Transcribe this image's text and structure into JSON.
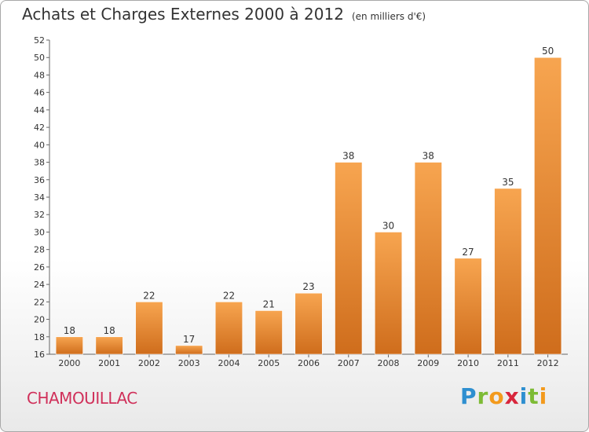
{
  "title": "Achats et Charges Externes 2000 à 2012",
  "unit": "(en milliers d'€)",
  "commune": "CHAMOUILLAC",
  "logo": {
    "letters": [
      "P",
      "r",
      "o",
      "x",
      "i",
      "t",
      "i"
    ],
    "colors": [
      "#2e8fd0",
      "#7dbb35",
      "#f39a1d",
      "#d8263c",
      "#2e8fd0",
      "#7dbb35",
      "#f39a1d"
    ]
  },
  "chart_data": {
    "type": "bar",
    "title": "Achats et Charges Externes 2000 à 2012",
    "subtitle": "(en milliers d'€)",
    "categories": [
      "2000",
      "2001",
      "2002",
      "2003",
      "2004",
      "2005",
      "2006",
      "2007",
      "2008",
      "2009",
      "2010",
      "2011",
      "2012"
    ],
    "values": [
      18,
      18,
      22,
      17,
      22,
      21,
      23,
      38,
      30,
      38,
      27,
      35,
      50
    ],
    "ylim": [
      16,
      52
    ],
    "yticks": [
      16,
      18,
      20,
      22,
      24,
      26,
      28,
      30,
      32,
      34,
      36,
      38,
      40,
      42,
      44,
      46,
      48,
      50,
      52
    ],
    "grid": false,
    "colors": {
      "bar_top": "#f7a550",
      "bar_bottom": "#cf6d1c"
    }
  }
}
